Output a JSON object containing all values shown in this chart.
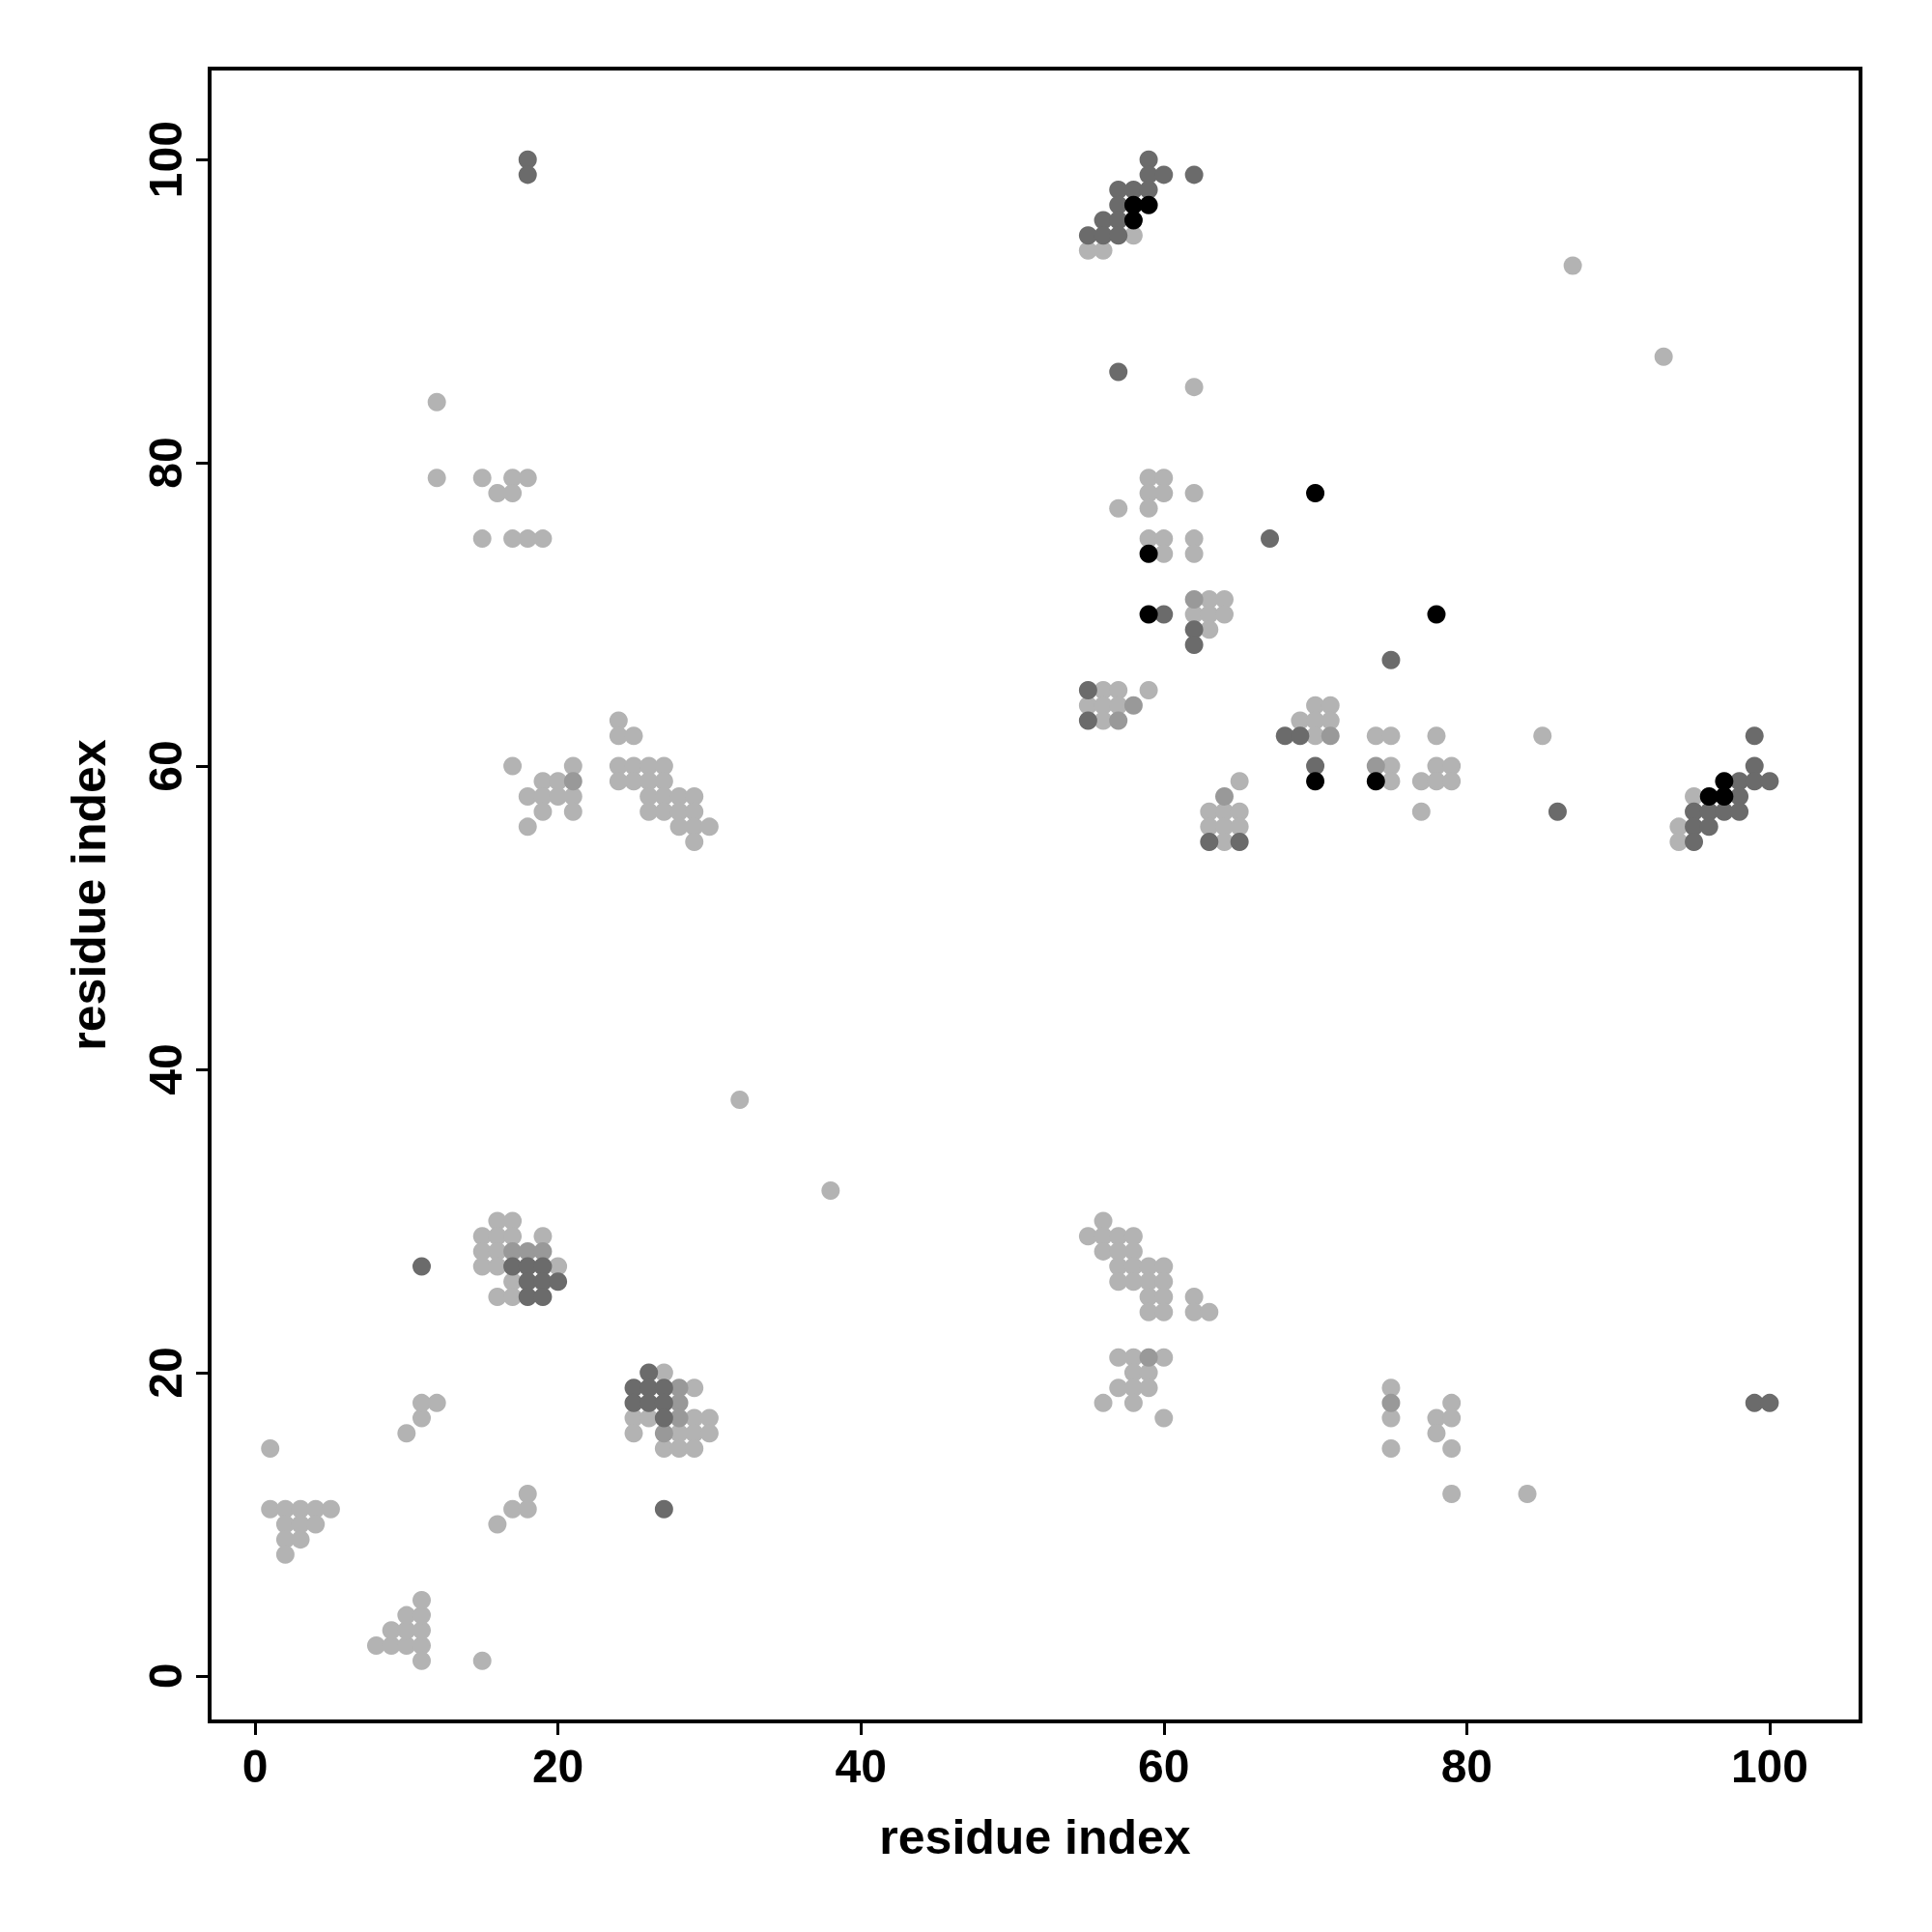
{
  "chart_data": {
    "type": "scatter",
    "xlabel": "residue index",
    "ylabel": "residue index",
    "xlim": [
      -3,
      106
    ],
    "ylim": [
      -3,
      106
    ],
    "xticks": [
      0,
      20,
      40,
      60,
      80,
      100
    ],
    "yticks": [
      0,
      20,
      40,
      60,
      80,
      100
    ],
    "grid": false,
    "marker": "circle",
    "series": [
      {
        "color": "#b3b3b3",
        "x": [
          1,
          1,
          2,
          3,
          4,
          5,
          2,
          3,
          4,
          2,
          3,
          2,
          8,
          9,
          10,
          11,
          9,
          10,
          11,
          10,
          11,
          11,
          11,
          15,
          16,
          17,
          18,
          18,
          10,
          11,
          11,
          12,
          27,
          29,
          25,
          26,
          29,
          30,
          25,
          28,
          29,
          30,
          27,
          28,
          29,
          16,
          17,
          15,
          16,
          17,
          19,
          15,
          16,
          15,
          16,
          20,
          17,
          16,
          17,
          32,
          38,
          12,
          12,
          15,
          17,
          18,
          16,
          17,
          15,
          17,
          18,
          19,
          24,
          24,
          25,
          17,
          21,
          24,
          25,
          26,
          27,
          19,
          20,
          24,
          25,
          26,
          27,
          18,
          19,
          20,
          21,
          26,
          27,
          28,
          29,
          19,
          21,
          26,
          27,
          28,
          29,
          18,
          28,
          29,
          30,
          29,
          58,
          55,
          56,
          62,
          59,
          60,
          59,
          60,
          62,
          57,
          59,
          59,
          60,
          62,
          60,
          62,
          63,
          64,
          62,
          63,
          64,
          63,
          56,
          57,
          59,
          55,
          56,
          57,
          56,
          70,
          71,
          69,
          70,
          71,
          70,
          74,
          75,
          78,
          75,
          78,
          79,
          75,
          77,
          78,
          79,
          77,
          65,
          63,
          64,
          65,
          63,
          64,
          65,
          64,
          85,
          95,
          94,
          94,
          87,
          93,
          56,
          55,
          56,
          57,
          58,
          56,
          57,
          58,
          57,
          58,
          59,
          60,
          57,
          58,
          59,
          60,
          59,
          60,
          62,
          59,
          60,
          62,
          63,
          57,
          58,
          60,
          58,
          59,
          57,
          58,
          59,
          56,
          58,
          60,
          75,
          75,
          75,
          79,
          78,
          79,
          78,
          79,
          79,
          84
        ],
        "values": [
          15,
          11,
          11,
          11,
          11,
          11,
          10,
          10,
          10,
          9,
          9,
          8,
          2,
          2,
          2,
          2,
          3,
          3,
          3,
          4,
          4,
          5,
          1,
          1,
          10,
          11,
          11,
          12,
          16,
          17,
          18,
          18,
          20,
          19,
          17,
          17,
          17,
          17,
          16,
          16,
          16,
          16,
          15,
          15,
          15,
          30,
          30,
          29,
          29,
          29,
          29,
          28,
          28,
          27,
          27,
          27,
          26,
          25,
          25,
          38,
          32,
          84,
          79,
          79,
          79,
          79,
          78,
          78,
          75,
          75,
          75,
          75,
          63,
          62,
          62,
          60,
          60,
          60,
          60,
          60,
          60,
          59,
          59,
          59,
          59,
          59,
          59,
          58,
          58,
          58,
          58,
          58,
          58,
          58,
          58,
          57,
          57,
          57,
          57,
          57,
          57,
          56,
          56,
          56,
          56,
          55,
          95,
          94,
          94,
          85,
          79,
          79,
          78,
          78,
          78,
          77,
          77,
          75,
          75,
          75,
          74,
          74,
          71,
          71,
          70,
          70,
          70,
          69,
          65,
          65,
          65,
          64,
          64,
          64,
          63,
          64,
          64,
          63,
          63,
          63,
          62,
          62,
          62,
          62,
          60,
          60,
          60,
          59,
          59,
          59,
          59,
          57,
          59,
          57,
          57,
          57,
          56,
          56,
          56,
          55,
          62,
          58,
          56,
          55,
          93,
          87,
          30,
          29,
          29,
          29,
          29,
          28,
          28,
          28,
          27,
          27,
          27,
          27,
          26,
          26,
          26,
          26,
          25,
          25,
          25,
          24,
          24,
          24,
          24,
          21,
          21,
          21,
          20,
          20,
          19,
          19,
          19,
          18,
          18,
          17,
          19,
          17,
          15,
          18,
          17,
          17,
          16,
          15,
          12,
          12
        ]
      },
      {
        "color": "#999999",
        "x": [
          28,
          28,
          28,
          27,
          17,
          18,
          19,
          21,
          59,
          75,
          62,
          58,
          57,
          71,
          74,
          64
        ],
        "values": [
          19,
          18,
          17,
          16,
          28,
          28,
          28,
          59,
          21,
          18,
          71,
          64,
          63,
          62,
          60,
          58
        ]
      },
      {
        "color": "#6b6b6b",
        "x": [
          18,
          18,
          27,
          11,
          26,
          25,
          26,
          27,
          25,
          26,
          27,
          27,
          17,
          18,
          19,
          18,
          19,
          20,
          18,
          19,
          59,
          59,
          60,
          62,
          57,
          58,
          59,
          57,
          56,
          57,
          55,
          56,
          57,
          57,
          67,
          60,
          62,
          62,
          75,
          55,
          55,
          68,
          69,
          70,
          63,
          65,
          86,
          99,
          99,
          98,
          99,
          100,
          98,
          95,
          96,
          97,
          98,
          95,
          96,
          95,
          99,
          100
        ],
        "values": [
          100,
          99,
          11,
          27,
          20,
          19,
          19,
          19,
          18,
          18,
          18,
          17,
          27,
          27,
          27,
          26,
          26,
          26,
          25,
          25,
          100,
          99,
          99,
          99,
          98,
          98,
          98,
          97,
          96,
          96,
          95,
          95,
          95,
          86,
          75,
          70,
          69,
          68,
          67,
          65,
          63,
          62,
          62,
          60,
          55,
          55,
          57,
          62,
          60,
          59,
          59,
          59,
          58,
          57,
          57,
          57,
          57,
          56,
          56,
          55,
          18,
          18
        ]
      },
      {
        "color": "#000000",
        "x": [
          58,
          59,
          58,
          59,
          59,
          70,
          78,
          70,
          74,
          97,
          96,
          97
        ],
        "values": [
          97,
          97,
          96,
          74,
          70,
          78,
          70,
          59,
          59,
          59,
          58,
          58
        ]
      }
    ]
  }
}
